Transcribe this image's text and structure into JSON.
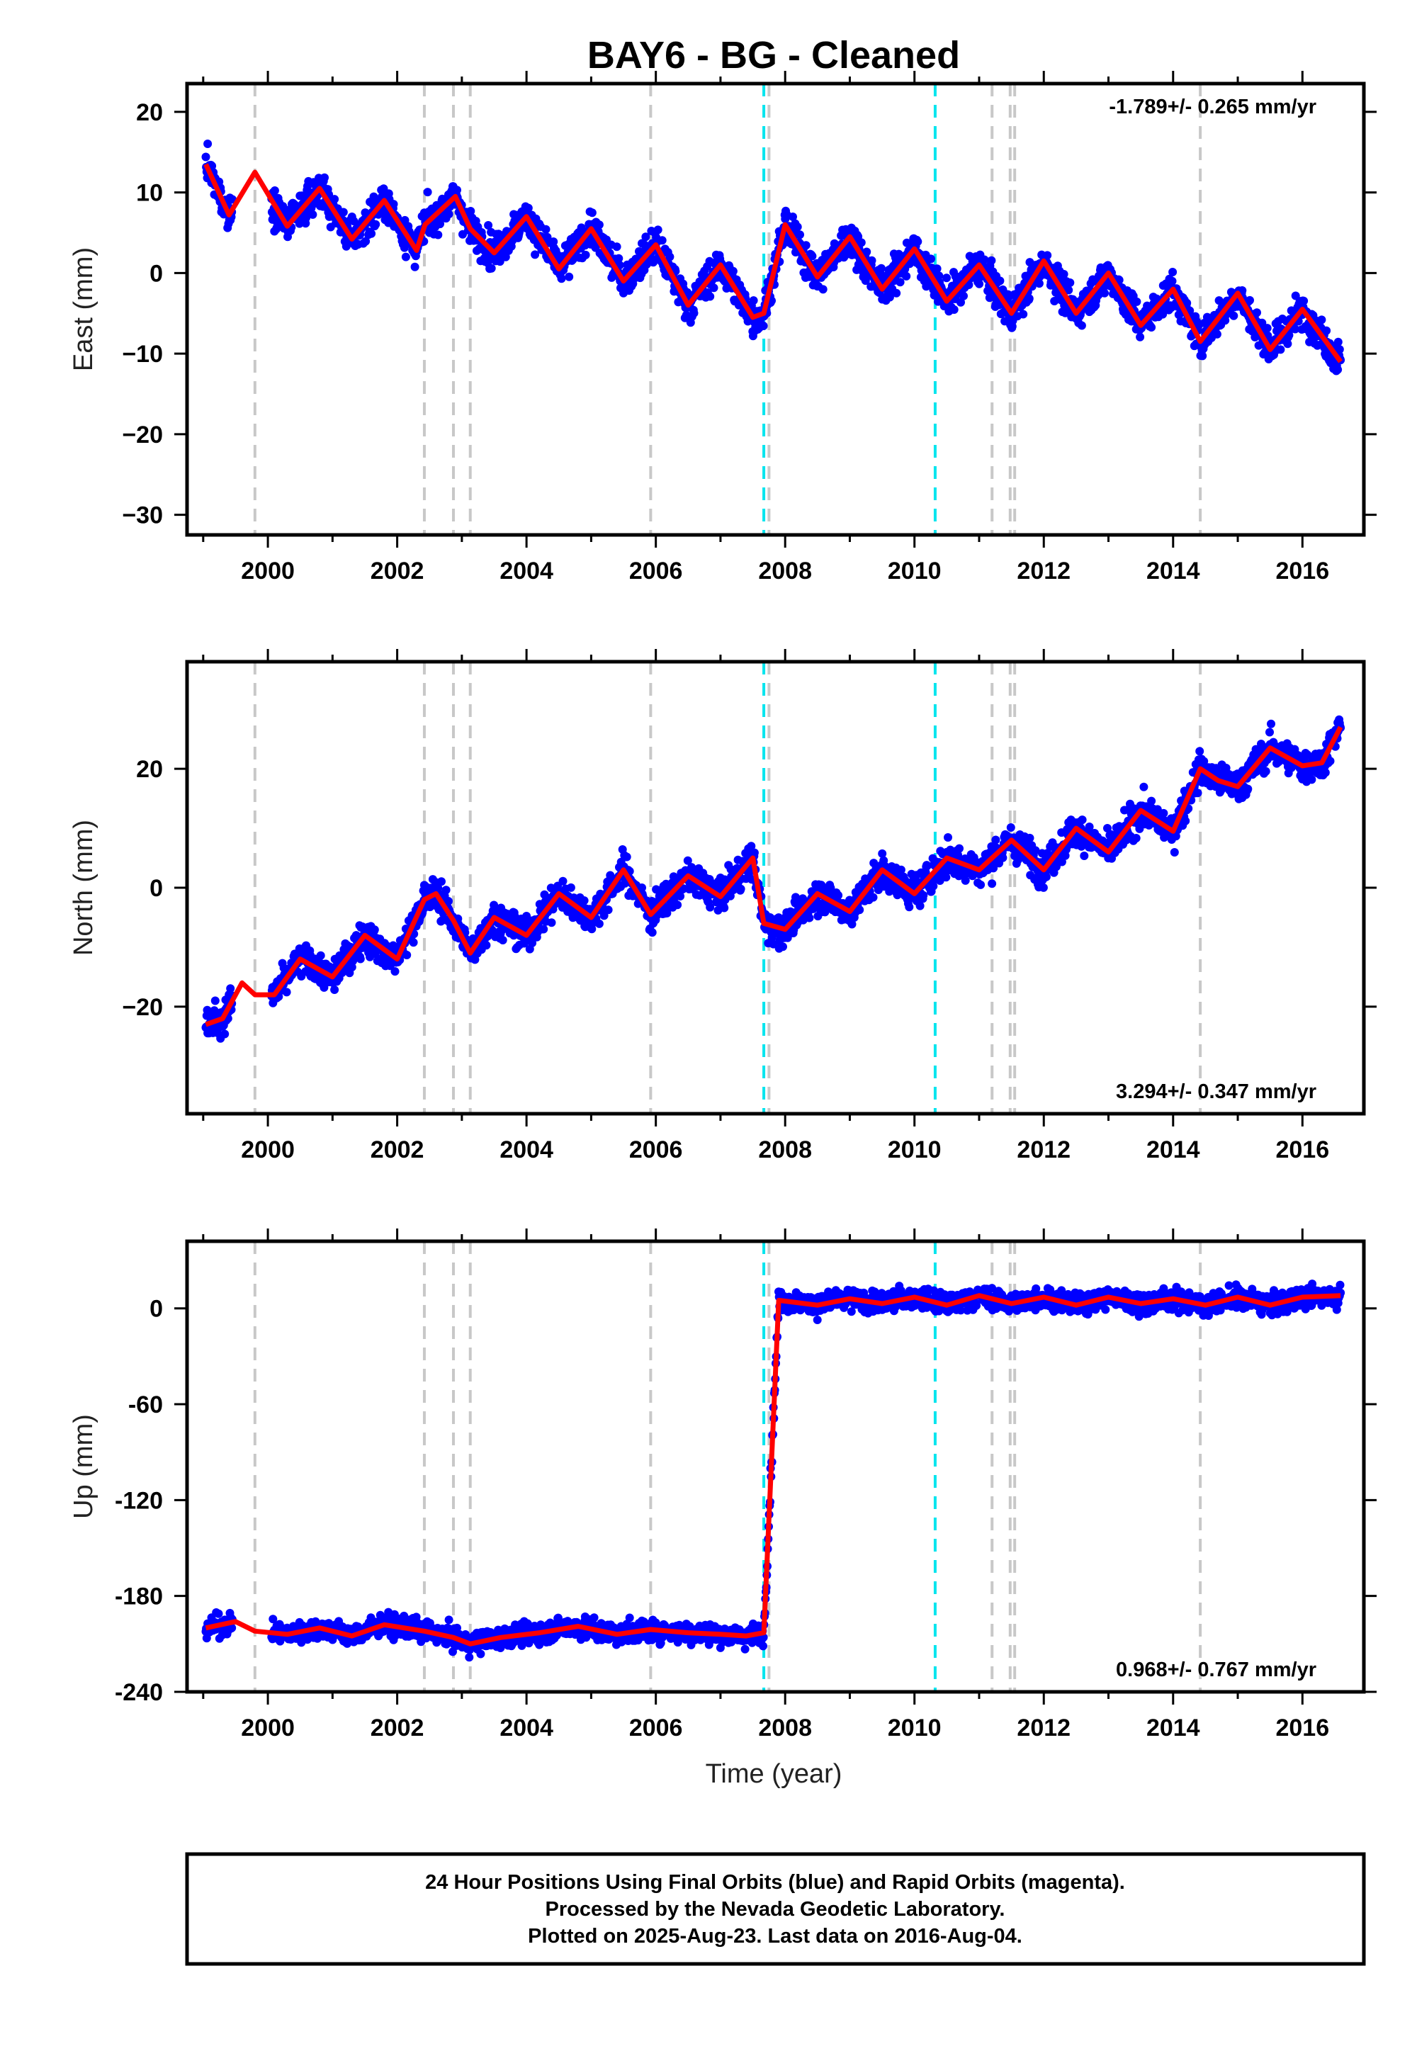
{
  "chart_data": {
    "type": "scatter",
    "title": "BAY6  - BG - Cleaned",
    "xlabel": "Time (year)",
    "xlim": [
      1998.75,
      2016.95
    ],
    "xticks": [
      "2000",
      "2002",
      "2004",
      "2006",
      "2008",
      "2010",
      "2012",
      "2014",
      "2016"
    ],
    "grid": false,
    "marker_color": "#0000ff",
    "model_color": "#ff0000",
    "equipment_line_color": "#c8c8c8",
    "earthquake_line_color": "#00e5ee",
    "equipment_change_years": [
      1999.8,
      2002.42,
      2002.87,
      2003.13,
      2005.92,
      2007.75,
      2011.2,
      2011.48,
      2011.55,
      2014.42
    ],
    "earthquake_years": [
      2007.67,
      2010.32
    ],
    "data_span": [
      1999.04,
      2016.59
    ],
    "panels": [
      {
        "component": "East",
        "ylabel": "East (mm)",
        "ylim": [
          -32.5,
          23.5
        ],
        "yticks": [
          "20",
          "10",
          "0",
          "−10",
          "−20",
          "−30"
        ],
        "yticks_values": [
          20,
          10,
          0,
          -10,
          -20,
          -30
        ],
        "rate_text": "-1.789+/- 0.265 mm/yr",
        "rate_position": "top-right",
        "scatter_sd": 1.8,
        "series": [
          {
            "name": "",
            "x": [
              1999.04,
              1999.4,
              1999.8,
              2000.3,
              2000.8,
              2001.3,
              2001.8,
              2002.3,
              2002.43,
              2002.9,
              2003.13,
              2003.5,
              2004.0,
              2004.5,
              2005.0,
              2005.5,
              2006.0,
              2006.5,
              2007.0,
              2007.5,
              2007.67,
              2008.0,
              2008.5,
              2009.0,
              2009.5,
              2010.0,
              2010.5,
              2011.0,
              2011.5,
              2012.0,
              2012.5,
              2013.0,
              2013.5,
              2014.0,
              2014.42,
              2015.0,
              2015.5,
              2016.0,
              2016.59
            ],
            "y": [
              13.5,
              7.2,
              12.5,
              5.8,
              10.5,
              4.2,
              9.0,
              2.8,
              6.0,
              9.5,
              5.5,
              2.5,
              7.0,
              0.5,
              5.5,
              -1.0,
              3.5,
              -4.0,
              1.0,
              -5.5,
              -5.0,
              6.0,
              -0.5,
              4.5,
              -2.0,
              3.0,
              -3.5,
              1.0,
              -5.0,
              1.5,
              -5.0,
              0.0,
              -6.5,
              -2.0,
              -8.5,
              -2.5,
              -9.5,
              -4.5,
              -11.0
            ]
          }
        ]
      },
      {
        "component": "North",
        "ylabel": "North (mm)",
        "ylim": [
          -38,
          38
        ],
        "yticks": [
          "20",
          "0",
          "−20"
        ],
        "yticks_values": [
          20,
          0,
          -20
        ],
        "rate_text": "3.294+/- 0.347 mm/yr",
        "rate_position": "bottom-right",
        "scatter_sd": 2.3,
        "series": [
          {
            "name": "",
            "x": [
              1999.04,
              1999.3,
              1999.6,
              1999.8,
              2000.1,
              2000.5,
              2001.0,
              2001.5,
              2002.0,
              2002.42,
              2002.6,
              2002.87,
              2003.13,
              2003.5,
              2004.0,
              2004.5,
              2005.0,
              2005.5,
              2005.92,
              2006.5,
              2007.0,
              2007.5,
              2007.67,
              2008.0,
              2008.5,
              2009.0,
              2009.5,
              2010.0,
              2010.5,
              2011.0,
              2011.5,
              2012.0,
              2012.5,
              2013.0,
              2013.5,
              2014.0,
              2014.42,
              2014.7,
              2015.0,
              2015.5,
              2016.0,
              2016.3,
              2016.59
            ],
            "y": [
              -23.0,
              -22.0,
              -16.0,
              -18.0,
              -18.0,
              -12.0,
              -15.0,
              -8.0,
              -12.0,
              -2.0,
              -1.0,
              -5.5,
              -11.0,
              -5.0,
              -8.0,
              -1.0,
              -5.0,
              3.0,
              -4.5,
              2.0,
              -1.5,
              5.0,
              -6.0,
              -7.0,
              -1.0,
              -4.0,
              3.0,
              -1.0,
              5.0,
              3.0,
              8.0,
              3.0,
              10.0,
              6.0,
              13.0,
              9.5,
              20.0,
              18.0,
              17.0,
              23.5,
              20.5,
              21.0,
              27.0
            ]
          }
        ]
      },
      {
        "component": "Up",
        "ylabel": "Up (mm)",
        "ylim": [
          -240,
          42
        ],
        "yticks": [
          "0",
          "-60",
          "-120",
          "-180",
          "-240"
        ],
        "yticks_values": [
          0,
          -60,
          -120,
          -180,
          -240
        ],
        "rate_text": "0.968+/- 0.767 mm/yr",
        "rate_position": "bottom-right",
        "scatter_sd": 5.5,
        "series": [
          {
            "name": "",
            "x": [
              1999.04,
              1999.5,
              1999.8,
              2000.3,
              2000.8,
              2001.3,
              2001.8,
              2002.42,
              2002.87,
              2003.13,
              2003.6,
              2004.2,
              2004.8,
              2005.4,
              2005.92,
              2006.5,
              2007.0,
              2007.4,
              2007.67,
              2007.9,
              2008.5,
              2009.0,
              2009.5,
              2010.0,
              2010.5,
              2011.0,
              2011.5,
              2012.0,
              2012.5,
              2013.0,
              2013.5,
              2014.0,
              2014.5,
              2015.0,
              2015.5,
              2016.0,
              2016.59
            ],
            "y": [
              -200.0,
              -196.0,
              -202.0,
              -204.0,
              -200.0,
              -205.0,
              -198.0,
              -202.0,
              -206.0,
              -210.0,
              -206.0,
              -203.0,
              -199.0,
              -204.0,
              -201.0,
              -203.0,
              -204.0,
              -205.0,
              -203.0,
              5.0,
              2.0,
              6.0,
              3.0,
              7.0,
              2.0,
              8.0,
              3.0,
              7.0,
              2.0,
              7.0,
              3.0,
              6.0,
              2.0,
              7.0,
              2.0,
              7.0,
              8.0
            ]
          }
        ]
      }
    ]
  },
  "footer": {
    "line1": "24 Hour Positions Using Final Orbits (blue) and Rapid Orbits (magenta).",
    "line2": "Processed by the Nevada Geodetic Laboratory.",
    "line3": "Plotted on 2025-Aug-23. Last data on 2016-Aug-04."
  }
}
